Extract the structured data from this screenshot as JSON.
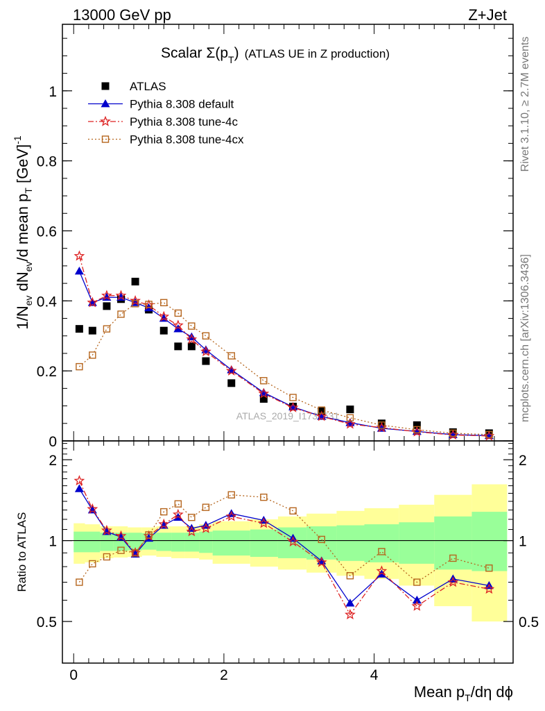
{
  "header": {
    "left": "13000 GeV pp",
    "right": "Z+Jet"
  },
  "title": {
    "main": "Scalar Σ(p",
    "sub": "T",
    "close": ")",
    "tail": "(ATLAS UE in Z production)"
  },
  "side": {
    "rivet": "Rivet 3.1.10, ≥ 2.7M events",
    "mcplots": "mcplots.cern.ch [arXiv:1306.3436]"
  },
  "watermark": "ATLAS_2019_I1736531",
  "axes": {
    "ylabel_main": "1/N_ev dN_ev/d mean p_T [GeV]^-1",
    "ylabel_ratio": "Ratio to ATLAS",
    "xlabel": "Mean p_T/dη dϕ"
  },
  "chart_data": [
    {
      "type": "scatter",
      "panel": "main",
      "xlim": [
        -0.15,
        5.85
      ],
      "ylim": [
        0,
        1.19
      ],
      "yticks": [
        0,
        0.2,
        0.4,
        0.6,
        0.8,
        1
      ],
      "ytick_labels": [
        "0",
        "0.2",
        "0.4",
        "0.6",
        "0.8",
        "1"
      ],
      "x": [
        0.075,
        0.25,
        0.44,
        0.63,
        0.82,
        1.0,
        1.2,
        1.39,
        1.57,
        1.76,
        2.1,
        2.53,
        2.92,
        3.3,
        3.68,
        4.1,
        4.57,
        5.05,
        5.53
      ],
      "series": [
        {
          "name": "ATLAS",
          "color": "#000000",
          "marker": "square-filled",
          "line": "none",
          "values": [
            0.32,
            0.315,
            0.385,
            0.405,
            0.455,
            0.375,
            0.315,
            0.27,
            0.27,
            0.228,
            0.165,
            0.12,
            0.098,
            0.085,
            0.09,
            0.05,
            0.045,
            0.025,
            0.022
          ]
        },
        {
          "name": "Pythia 8.308 default",
          "color": "#0000cc",
          "marker": "triangle-filled",
          "line": "solid",
          "values": [
            0.485,
            0.395,
            0.41,
            0.41,
            0.395,
            0.38,
            0.35,
            0.32,
            0.297,
            0.26,
            0.203,
            0.138,
            0.097,
            0.07,
            0.052,
            0.036,
            0.027,
            0.018,
            0.015
          ]
        },
        {
          "name": "Pythia 8.308 tune-4c",
          "color": "#dd2222",
          "marker": "star-open",
          "line": "dashdot",
          "values": [
            0.528,
            0.395,
            0.415,
            0.415,
            0.4,
            0.388,
            0.355,
            0.33,
            0.29,
            0.255,
            0.2,
            0.135,
            0.095,
            0.07,
            0.048,
            0.038,
            0.026,
            0.017,
            0.014
          ]
        },
        {
          "name": "Pythia 8.308 tune-4cx",
          "color": "#b5651d",
          "marker": "square-open",
          "line": "dotted",
          "values": [
            0.212,
            0.245,
            0.32,
            0.362,
            0.392,
            0.39,
            0.395,
            0.365,
            0.328,
            0.3,
            0.243,
            0.172,
            0.124,
            0.088,
            0.066,
            0.045,
            0.032,
            0.022,
            0.018
          ]
        }
      ],
      "legend": "top-left"
    },
    {
      "type": "line",
      "panel": "ratio",
      "ylabel": "Ratio to ATLAS",
      "xlabel": "Mean p_T/dη dϕ",
      "xlim": [
        -0.15,
        5.85
      ],
      "ylim": [
        0.35,
        2.35
      ],
      "yticks": [
        0.5,
        1,
        2
      ],
      "ytick_labels": [
        "0.5",
        "1",
        "2"
      ],
      "xticks": [
        0,
        2,
        4
      ],
      "xtick_labels": [
        "0",
        "2",
        "4"
      ],
      "x": [
        0.075,
        0.25,
        0.44,
        0.63,
        0.82,
        1.0,
        1.2,
        1.39,
        1.57,
        1.76,
        2.1,
        2.53,
        2.92,
        3.3,
        3.68,
        4.1,
        4.57,
        5.05,
        5.53
      ],
      "bin_edges": [
        0,
        0.15,
        0.35,
        0.53,
        0.72,
        0.91,
        1.1,
        1.3,
        1.48,
        1.67,
        1.85,
        2.35,
        2.72,
        3.1,
        3.5,
        3.87,
        4.33,
        4.8,
        5.3,
        5.77
      ],
      "bands": {
        "green_low": [
          0.905,
          0.905,
          0.915,
          0.915,
          0.92,
          0.925,
          0.915,
          0.91,
          0.91,
          0.9,
          0.88,
          0.87,
          0.86,
          0.85,
          0.84,
          0.83,
          0.82,
          0.78,
          0.77
        ],
        "green_high": [
          1.08,
          1.08,
          1.07,
          1.07,
          1.07,
          1.065,
          1.07,
          1.07,
          1.07,
          1.08,
          1.09,
          1.1,
          1.12,
          1.13,
          1.14,
          1.15,
          1.17,
          1.23,
          1.28
        ],
        "yellow_low": [
          0.82,
          0.83,
          0.86,
          0.865,
          0.87,
          0.88,
          0.87,
          0.86,
          0.86,
          0.85,
          0.82,
          0.8,
          0.78,
          0.76,
          0.74,
          0.72,
          0.68,
          0.57,
          0.5
        ],
        "yellow_high": [
          1.16,
          1.15,
          1.13,
          1.13,
          1.12,
          1.12,
          1.13,
          1.13,
          1.13,
          1.15,
          1.18,
          1.2,
          1.23,
          1.26,
          1.29,
          1.32,
          1.36,
          1.48,
          1.62
        ]
      },
      "series": [
        {
          "name": "Pythia 8.308 default",
          "color": "#0000cc",
          "marker": "triangle-filled",
          "line": "solid",
          "values": [
            1.56,
            1.3,
            1.08,
            1.03,
            0.89,
            1.02,
            1.14,
            1.22,
            1.11,
            1.14,
            1.26,
            1.19,
            1.02,
            0.84,
            0.585,
            0.75,
            0.6,
            0.72,
            0.68
          ]
        },
        {
          "name": "Pythia 8.308 tune-4c",
          "color": "#dd2222",
          "marker": "star-open",
          "line": "dashdot",
          "values": [
            1.67,
            1.31,
            1.09,
            1.04,
            0.9,
            1.04,
            1.15,
            1.25,
            1.08,
            1.11,
            1.23,
            1.16,
            0.99,
            0.83,
            0.53,
            0.77,
            0.57,
            0.7,
            0.66
          ]
        },
        {
          "name": "Pythia 8.308 tune-4cx",
          "color": "#b5651d",
          "marker": "square-open",
          "line": "dotted",
          "values": [
            0.7,
            0.82,
            0.87,
            0.92,
            0.9,
            1.05,
            1.28,
            1.37,
            1.22,
            1.33,
            1.48,
            1.45,
            1.29,
            1.01,
            0.74,
            0.91,
            0.7,
            0.86,
            0.79
          ]
        }
      ]
    }
  ]
}
